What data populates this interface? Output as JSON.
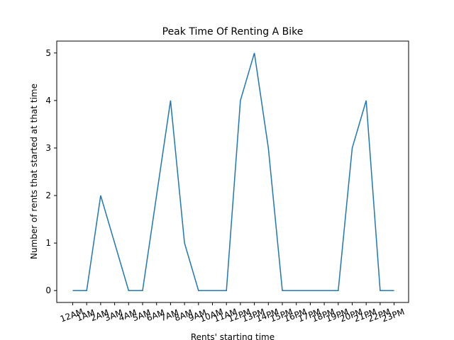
{
  "chart_data": {
    "type": "line",
    "title": "Peak Time Of Renting A Bike",
    "xlabel": "Rents' starting time",
    "ylabel": "Number of rents that started at that time",
    "categories": [
      "12AM",
      "1AM",
      "2AM",
      "3AM",
      "4AM",
      "5AM",
      "6AM",
      "7AM",
      "8AM",
      "9AM",
      "10AM",
      "11AM",
      "12PM",
      "13PM",
      "14PM",
      "15PM",
      "16PM",
      "17PM",
      "18PM",
      "19PM",
      "20PM",
      "21PM",
      "22PM",
      "23PM"
    ],
    "values": [
      0,
      0,
      2,
      1,
      0,
      0,
      2,
      4,
      1,
      0,
      0,
      0,
      4,
      5,
      3,
      0,
      0,
      0,
      0,
      0,
      3,
      4,
      0,
      0
    ],
    "ylim": [
      -0.25,
      5.25
    ],
    "yticks": [
      0,
      1,
      2,
      3,
      4,
      5
    ],
    "grid": false,
    "line_color": "#1f77b4"
  }
}
